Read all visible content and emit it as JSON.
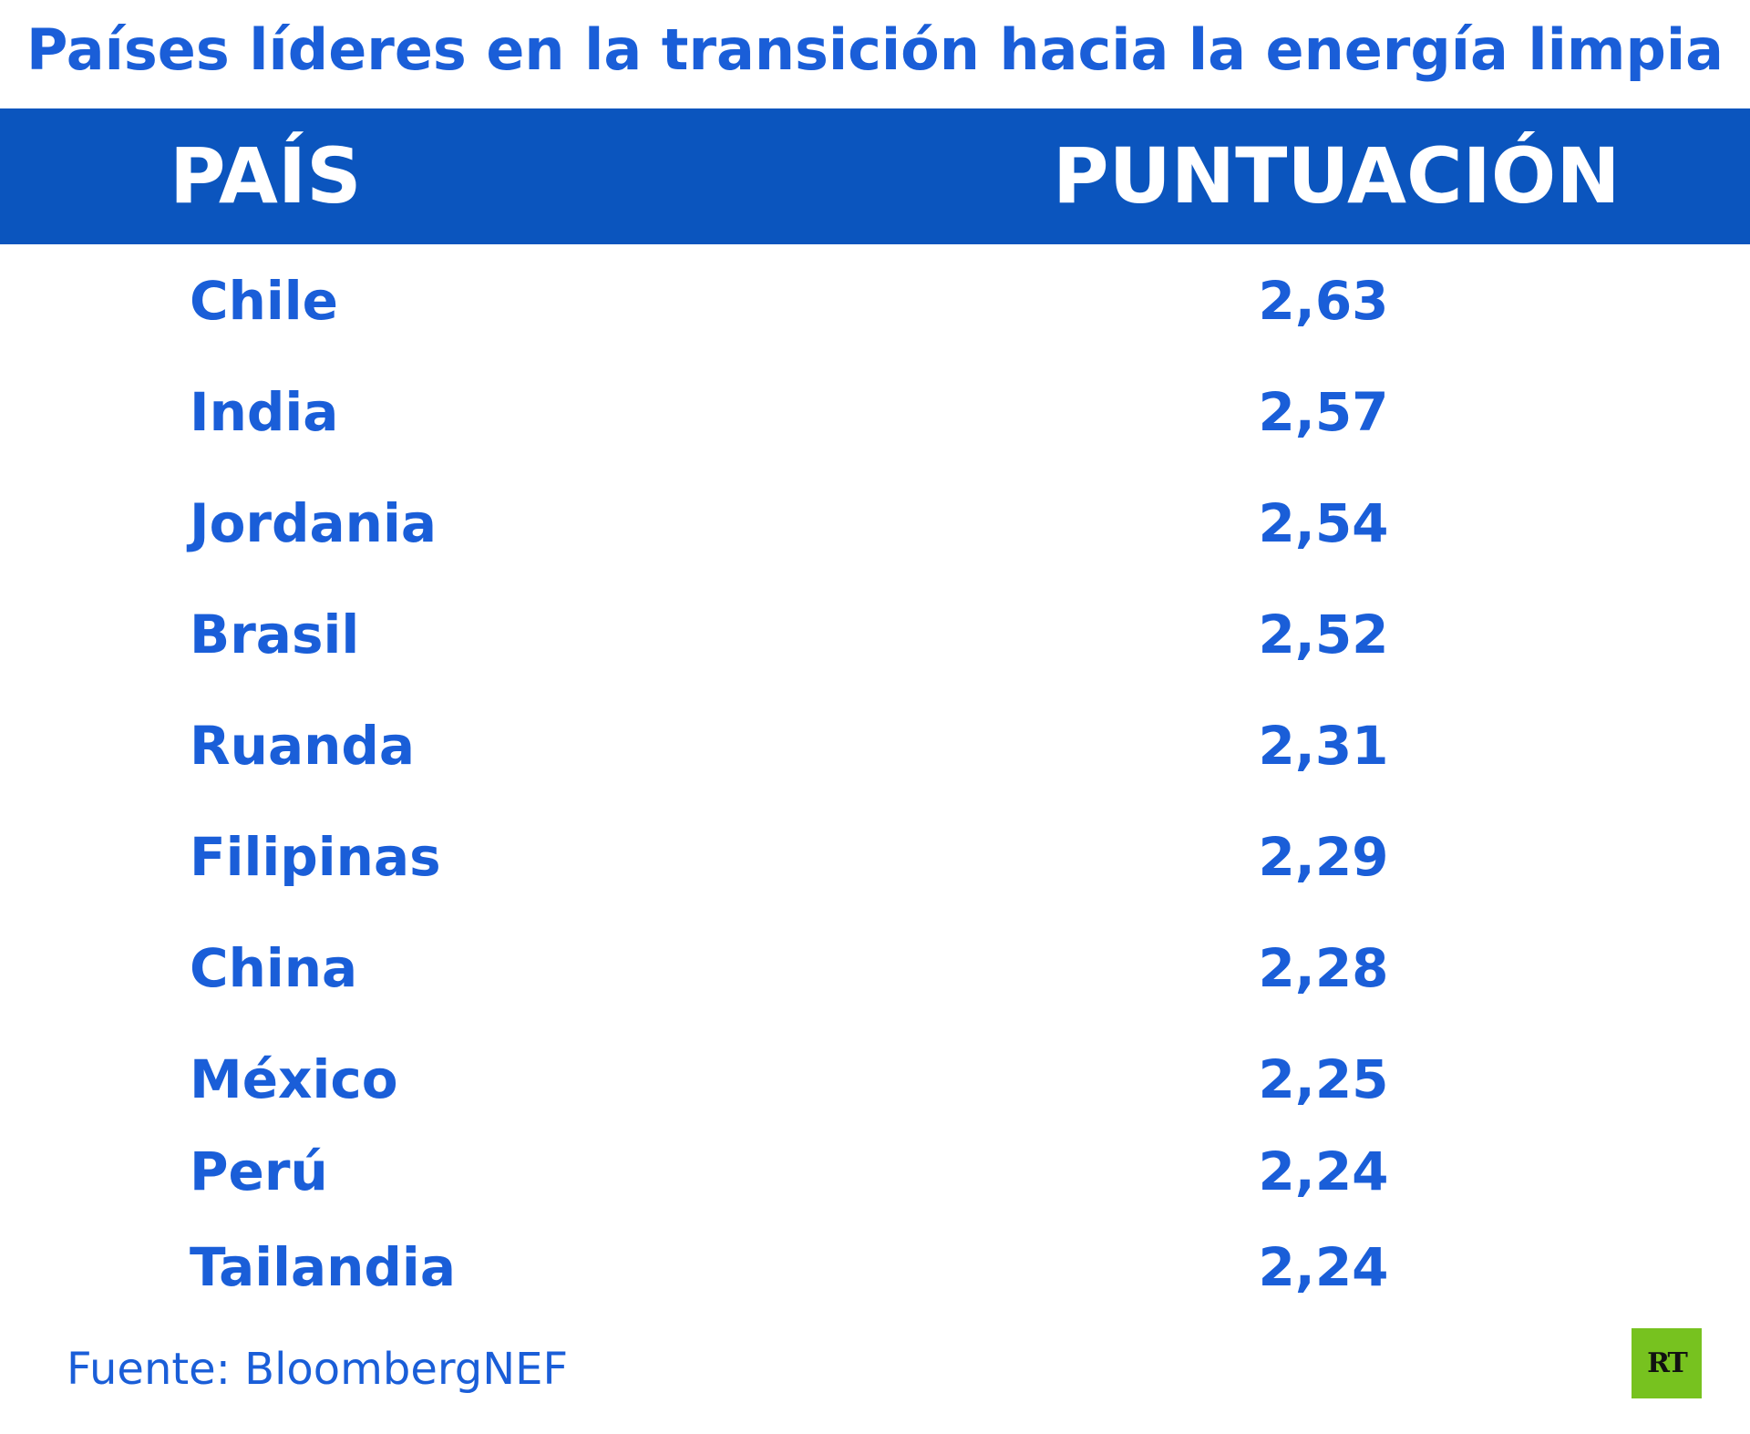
{
  "title": "Países líderes en la transición hacia la energía limpia",
  "header": {
    "country": "PAÍS",
    "score": "PUNTUACIÓN"
  },
  "source": "Fuente: BloombergNEF",
  "logo": {
    "text": "RT",
    "color": "#77c21f"
  },
  "colors": {
    "accent": "#1a5ed8",
    "header_band": "#0b55be"
  },
  "chart_data": {
    "type": "table",
    "title": "Países líderes en la transición hacia la energía limpia",
    "columns": [
      "PAÍS",
      "PUNTUACIÓN"
    ],
    "rows": [
      {
        "country": "Chile",
        "score": "2,63"
      },
      {
        "country": "India",
        "score": "2,57"
      },
      {
        "country": "Jordania",
        "score": "2,54"
      },
      {
        "country": "Brasil",
        "score": "2,52"
      },
      {
        "country": "Ruanda",
        "score": "2,31"
      },
      {
        "country": "Filipinas",
        "score": "2,29"
      },
      {
        "country": "China",
        "score": "2,28"
      },
      {
        "country": "México",
        "score": "2,25"
      },
      {
        "country": "Perú",
        "score": "2,24"
      },
      {
        "country": "Tailandia",
        "score": "2,24"
      }
    ]
  }
}
